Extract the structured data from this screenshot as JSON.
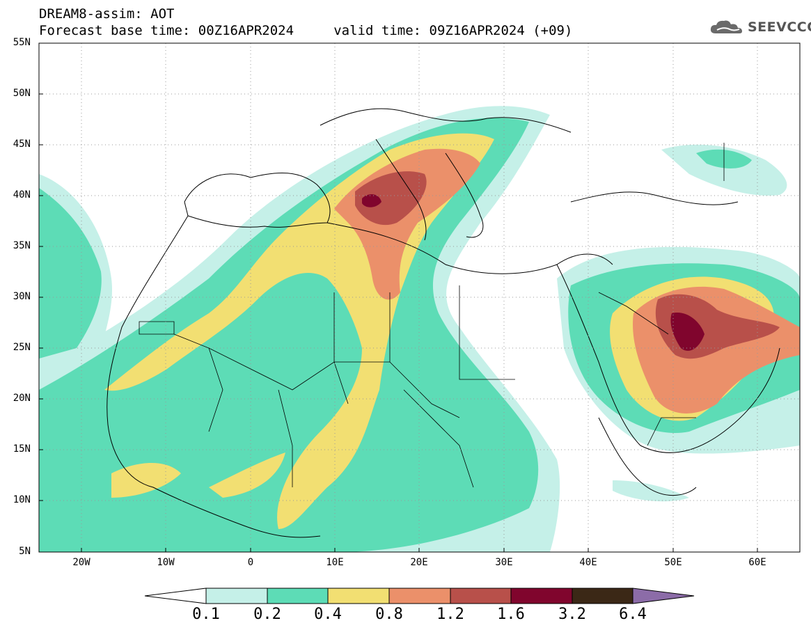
{
  "header": {
    "title": "DREAM8-assim: AOT",
    "subtitle": "Forecast base time: 00Z16APR2024     valid time: 09Z16APR2024 (+09)",
    "logo_text": "SEEVCCC",
    "logo_icon": "cloud-icon"
  },
  "map": {
    "projection": "cylindrical equidistant",
    "lon_range": [
      -25,
      65
    ],
    "lat_range": [
      5,
      55
    ],
    "lat_labels": [
      "55N",
      "50N",
      "45N",
      "40N",
      "35N",
      "30N",
      "25N",
      "20N",
      "15N",
      "10N",
      "5N"
    ],
    "lon_labels": [
      "20W",
      "10W",
      "0",
      "10E",
      "20E",
      "30E",
      "40E",
      "50E",
      "60E"
    ],
    "grid": "dotted"
  },
  "colorbar": {
    "levels": [
      "0.1",
      "0.2",
      "0.4",
      "0.8",
      "1.2",
      "1.6",
      "3.2",
      "6.4"
    ],
    "colors": [
      "#c5f0e8",
      "#5ddcb6",
      "#f2df72",
      "#eb906a",
      "#b8504a",
      "#80052d",
      "#3b2816",
      "#8c6ca8"
    ]
  }
}
